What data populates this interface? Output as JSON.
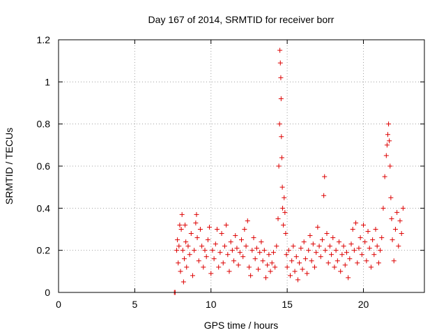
{
  "chart_data": {
    "type": "scatter",
    "title": "Day 167 of 2014, SRMTID for receiver borr",
    "xlabel": "GPS time / hours",
    "ylabel": "SRMTID / TECUs",
    "xlim": [
      0,
      24
    ],
    "ylim": [
      0,
      1.2
    ],
    "x_ticks": [
      0,
      5,
      10,
      15,
      20
    ],
    "x_tick_labels": [
      "0",
      "5",
      "10",
      "15",
      "20"
    ],
    "y_ticks": [
      0,
      0.2,
      0.4,
      0.6,
      0.8,
      1.0,
      1.2
    ],
    "y_tick_labels": [
      "0",
      "0.2",
      "0.4",
      "0.6",
      "0.8",
      "1",
      "1.2"
    ],
    "grid": true,
    "marker": "+",
    "color": "#dd0000",
    "series": [
      {
        "name": "SRMTID",
        "points": [
          [
            7.6,
            0.0
          ],
          [
            7.65,
            0.0
          ],
          [
            7.75,
            0.2
          ],
          [
            7.8,
            0.25
          ],
          [
            7.85,
            0.14
          ],
          [
            7.9,
            0.22
          ],
          [
            7.95,
            0.32
          ],
          [
            8.0,
            0.1
          ],
          [
            8.05,
            0.3
          ],
          [
            8.1,
            0.37
          ],
          [
            8.15,
            0.2
          ],
          [
            8.2,
            0.05
          ],
          [
            8.25,
            0.16
          ],
          [
            8.3,
            0.32
          ],
          [
            8.35,
            0.24
          ],
          [
            8.4,
            0.12
          ],
          [
            8.5,
            0.22
          ],
          [
            8.6,
            0.18
          ],
          [
            8.7,
            0.28
          ],
          [
            8.8,
            0.08
          ],
          [
            8.9,
            0.2
          ],
          [
            9.0,
            0.33
          ],
          [
            9.05,
            0.37
          ],
          [
            9.1,
            0.26
          ],
          [
            9.2,
            0.15
          ],
          [
            9.3,
            0.3
          ],
          [
            9.4,
            0.22
          ],
          [
            9.5,
            0.12
          ],
          [
            9.6,
            0.2
          ],
          [
            9.7,
            0.17
          ],
          [
            9.8,
            0.25
          ],
          [
            9.9,
            0.31
          ],
          [
            10.0,
            0.09
          ],
          [
            10.1,
            0.2
          ],
          [
            10.2,
            0.16
          ],
          [
            10.3,
            0.23
          ],
          [
            10.4,
            0.3
          ],
          [
            10.5,
            0.12
          ],
          [
            10.6,
            0.19
          ],
          [
            10.7,
            0.28
          ],
          [
            10.8,
            0.14
          ],
          [
            10.9,
            0.22
          ],
          [
            11.0,
            0.32
          ],
          [
            11.1,
            0.18
          ],
          [
            11.2,
            0.1
          ],
          [
            11.3,
            0.24
          ],
          [
            11.4,
            0.2
          ],
          [
            11.5,
            0.15
          ],
          [
            11.6,
            0.27
          ],
          [
            11.7,
            0.21
          ],
          [
            11.8,
            0.13
          ],
          [
            11.9,
            0.19
          ],
          [
            12.0,
            0.25
          ],
          [
            12.1,
            0.17
          ],
          [
            12.2,
            0.3
          ],
          [
            12.3,
            0.22
          ],
          [
            12.4,
            0.34
          ],
          [
            12.5,
            0.12
          ],
          [
            12.6,
            0.08
          ],
          [
            12.7,
            0.2
          ],
          [
            12.8,
            0.26
          ],
          [
            12.9,
            0.16
          ],
          [
            13.0,
            0.21
          ],
          [
            13.1,
            0.11
          ],
          [
            13.2,
            0.19
          ],
          [
            13.3,
            0.24
          ],
          [
            13.4,
            0.15
          ],
          [
            13.5,
            0.2
          ],
          [
            13.6,
            0.07
          ],
          [
            13.7,
            0.13
          ],
          [
            13.8,
            0.18
          ],
          [
            13.9,
            0.1
          ],
          [
            14.0,
            0.14
          ],
          [
            14.1,
            0.19
          ],
          [
            14.2,
            0.12
          ],
          [
            14.3,
            0.22
          ],
          [
            14.4,
            0.35
          ],
          [
            14.45,
            0.6
          ],
          [
            14.5,
            0.8
          ],
          [
            14.52,
            1.15
          ],
          [
            14.55,
            1.09
          ],
          [
            14.58,
            1.02
          ],
          [
            14.6,
            0.92
          ],
          [
            14.62,
            0.74
          ],
          [
            14.65,
            0.64
          ],
          [
            14.68,
            0.5
          ],
          [
            14.7,
            0.4
          ],
          [
            14.75,
            0.32
          ],
          [
            14.8,
            0.45
          ],
          [
            14.85,
            0.38
          ],
          [
            14.9,
            0.28
          ],
          [
            14.95,
            0.18
          ],
          [
            15.0,
            0.12
          ],
          [
            15.1,
            0.2
          ],
          [
            15.2,
            0.08
          ],
          [
            15.3,
            0.15
          ],
          [
            15.4,
            0.22
          ],
          [
            15.5,
            0.1
          ],
          [
            15.6,
            0.17
          ],
          [
            15.7,
            0.06
          ],
          [
            15.8,
            0.14
          ],
          [
            15.9,
            0.21
          ],
          [
            16.0,
            0.11
          ],
          [
            16.1,
            0.24
          ],
          [
            16.2,
            0.16
          ],
          [
            16.3,
            0.09
          ],
          [
            16.4,
            0.2
          ],
          [
            16.5,
            0.27
          ],
          [
            16.6,
            0.15
          ],
          [
            16.7,
            0.23
          ],
          [
            16.8,
            0.12
          ],
          [
            16.9,
            0.19
          ],
          [
            17.0,
            0.31
          ],
          [
            17.1,
            0.22
          ],
          [
            17.2,
            0.17
          ],
          [
            17.3,
            0.25
          ],
          [
            17.4,
            0.46
          ],
          [
            17.45,
            0.55
          ],
          [
            17.5,
            0.2
          ],
          [
            17.6,
            0.28
          ],
          [
            17.7,
            0.14
          ],
          [
            17.8,
            0.22
          ],
          [
            17.9,
            0.18
          ],
          [
            18.0,
            0.26
          ],
          [
            18.1,
            0.12
          ],
          [
            18.2,
            0.2
          ],
          [
            18.3,
            0.15
          ],
          [
            18.4,
            0.24
          ],
          [
            18.5,
            0.1
          ],
          [
            18.6,
            0.18
          ],
          [
            18.7,
            0.22
          ],
          [
            18.8,
            0.13
          ],
          [
            18.9,
            0.19
          ],
          [
            19.0,
            0.07
          ],
          [
            19.1,
            0.16
          ],
          [
            19.2,
            0.23
          ],
          [
            19.3,
            0.3
          ],
          [
            19.4,
            0.2
          ],
          [
            19.5,
            0.33
          ],
          [
            19.6,
            0.14
          ],
          [
            19.7,
            0.21
          ],
          [
            19.8,
            0.26
          ],
          [
            19.9,
            0.18
          ],
          [
            20.0,
            0.32
          ],
          [
            20.1,
            0.24
          ],
          [
            20.2,
            0.15
          ],
          [
            20.3,
            0.29
          ],
          [
            20.4,
            0.21
          ],
          [
            20.5,
            0.12
          ],
          [
            20.6,
            0.25
          ],
          [
            20.7,
            0.18
          ],
          [
            20.8,
            0.3
          ],
          [
            20.9,
            0.22
          ],
          [
            21.0,
            0.14
          ],
          [
            21.1,
            0.2
          ],
          [
            21.2,
            0.26
          ],
          [
            21.3,
            0.4
          ],
          [
            21.4,
            0.55
          ],
          [
            21.5,
            0.65
          ],
          [
            21.55,
            0.7
          ],
          [
            21.6,
            0.75
          ],
          [
            21.65,
            0.8
          ],
          [
            21.7,
            0.72
          ],
          [
            21.75,
            0.6
          ],
          [
            21.8,
            0.45
          ],
          [
            21.85,
            0.35
          ],
          [
            21.9,
            0.25
          ],
          [
            22.0,
            0.15
          ],
          [
            22.1,
            0.3
          ],
          [
            22.2,
            0.38
          ],
          [
            22.3,
            0.22
          ],
          [
            22.4,
            0.34
          ],
          [
            22.5,
            0.28
          ],
          [
            22.6,
            0.4
          ]
        ]
      }
    ]
  }
}
